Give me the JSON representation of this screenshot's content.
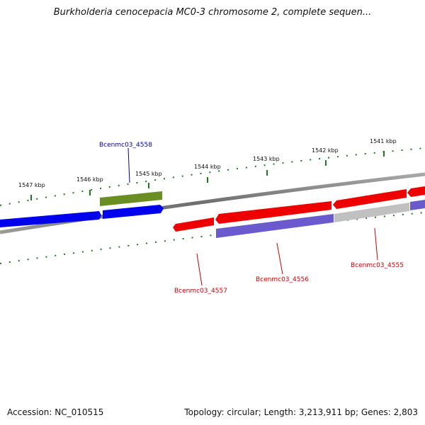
{
  "title": "Burkholderia cenocepacia MC0-3 chromosome 2, complete sequen...",
  "footer": {
    "accession": "Accession: NC_010515",
    "summary": "Topology: circular; Length: 3,213,911 bp; Genes: 2,803"
  },
  "ticks": [
    "1547 kbp",
    "1546 kbp",
    "1545 kbp",
    "1544 kbp",
    "1543 kbp",
    "1542 kbp",
    "1541 kbp"
  ],
  "gene_labels": [
    "Bcenmc03_4558",
    "Bcenmc03_4557",
    "Bcenmc03_4556",
    "Bcenmc03_4555"
  ],
  "colors": {
    "backbone": "#7a7a7a",
    "ticks": "#1e7a1e",
    "blue_gene": "#0000ee",
    "green_gene": "#6b8e23",
    "red_gene": "#ee0000",
    "purple_gene": "#6a5acd",
    "gray_gene": "#c0c0c0",
    "label_blue": "#0000aa",
    "label_red": "#cc0000"
  }
}
